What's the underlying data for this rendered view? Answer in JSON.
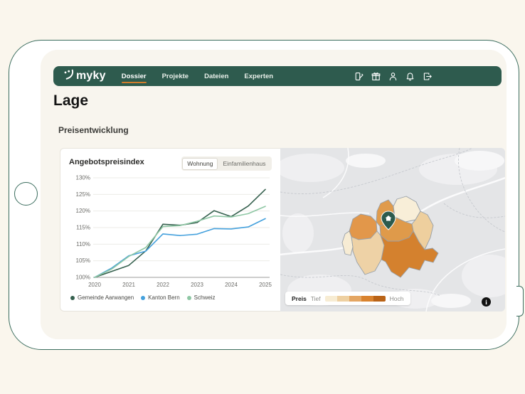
{
  "navbar": {
    "logo_text": "myky",
    "items": [
      {
        "label": "Dossier",
        "active": true
      },
      {
        "label": "Projekte",
        "active": false
      },
      {
        "label": "Dateien",
        "active": false
      },
      {
        "label": "Experten",
        "active": false
      }
    ],
    "icons": [
      "contract-sign-icon",
      "gift-icon",
      "user-icon",
      "notifications-icon",
      "logout-icon"
    ],
    "bg_color": "#2e5b4e",
    "active_underline_color": "#d27d2c"
  },
  "page_title": "Lage",
  "section_title": "Preisentwicklung",
  "chart_card": {
    "title": "Angebotspreisindex",
    "toggle": {
      "options": [
        "Wohnung",
        "Einfamilienhaus"
      ],
      "selected": "Wohnung"
    }
  },
  "chart_data": {
    "type": "line",
    "title": "Angebotspreisindex",
    "x": [
      2020,
      2020.5,
      2021,
      2021.5,
      2022,
      2022.5,
      2023,
      2023.5,
      2024,
      2024.5,
      2025
    ],
    "x_ticks": [
      2020,
      2021,
      2022,
      2023,
      2024,
      2025
    ],
    "ylim": [
      100,
      130
    ],
    "y_ticks": [
      100,
      105,
      110,
      115,
      120,
      125,
      130
    ],
    "y_tick_suffix": "%",
    "grid": true,
    "legend_position": "bottom",
    "series": [
      {
        "name": "Gemeinde Aarwangen",
        "color": "#35604e",
        "values": [
          100,
          101.8,
          103.6,
          108.0,
          116.0,
          115.7,
          116.5,
          120.1,
          118.3,
          121.5,
          126.5
        ]
      },
      {
        "name": "Kanton Bern",
        "color": "#45a1dd",
        "values": [
          100,
          102.8,
          106.5,
          107.9,
          113.1,
          112.6,
          113.0,
          114.7,
          114.6,
          115.2,
          117.7
        ]
      },
      {
        "name": "Schweiz",
        "color": "#8ec7a4",
        "values": [
          100,
          102.5,
          106.3,
          109.0,
          115.3,
          115.6,
          116.9,
          118.5,
          118.2,
          119.2,
          121.4
        ]
      }
    ]
  },
  "map": {
    "legend": {
      "label": "Preis",
      "low": "Tief",
      "high": "Hoch",
      "colors": [
        "#f7ecd3",
        "#eed0a1",
        "#e4a663",
        "#d9832f",
        "#b96317"
      ]
    },
    "info_glyph": "i",
    "pin_color": "#2c5b4e",
    "regions": [
      {
        "shade": "medium",
        "color": "#e2974a"
      },
      {
        "shade": "medium",
        "color": "#e09b4c"
      },
      {
        "shade": "lowest",
        "color": "#f8eed8"
      },
      {
        "shade": "low",
        "color": "#eecf9e"
      },
      {
        "shade": "medium",
        "color": "#df9a4a"
      },
      {
        "shade": "lowest",
        "color": "#f7ecd4"
      },
      {
        "shade": "low",
        "color": "#eed2a6"
      },
      {
        "shade": "high",
        "color": "#d4812e"
      }
    ]
  }
}
